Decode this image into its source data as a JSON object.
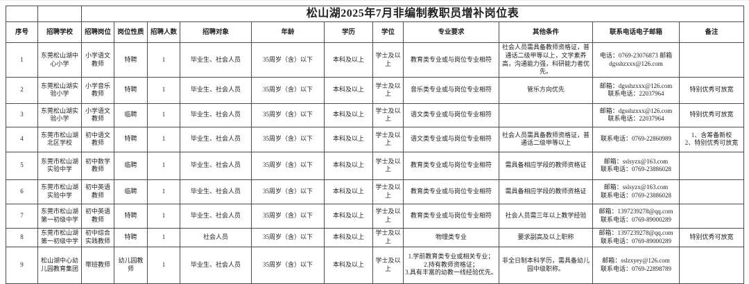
{
  "title": "松山湖2025年7月非编制教职员增补岗位表",
  "table": {
    "columns": [
      "序号",
      "招聘学校",
      "招聘岗位",
      "岗位性质",
      "招聘人数",
      "招聘对象",
      "年龄",
      "学历",
      "学位",
      "专业要求",
      "其他条件",
      "联系电话电子邮箱",
      "备注"
    ],
    "rows": [
      [
        "1",
        "东莞松山湖中心小学",
        "小学语文教师",
        "特聘",
        "1",
        "毕业生、社会人员",
        "35周岁（含）以下",
        "本科及以上",
        "学士及以上",
        "教育类专业或与岗位专业相符",
        "社会人员需具备教师资格证，普通话二级甲等以上，文学素养高，沟通能力强，科研能力者优先。",
        "电话：0769-23076873 邮箱\ndgsshzxxx@126.com",
        ""
      ],
      [
        "2",
        "东莞松山湖实验小学",
        "小学音乐教师",
        "特聘",
        "1",
        "毕业生、社会人员",
        "35周岁（含）以下",
        "本科及以上",
        "学士及以上",
        "音乐类专业或与岗位专业相符",
        "管乐方向优先",
        "邮箱：dgsshzxxx@126.com\n联系电话：22037964",
        "特别优秀可放宽"
      ],
      [
        "3",
        "东莞松山湖实验小学",
        "小学语文教师",
        "临聘",
        "1",
        "毕业生、社会人员",
        "35周岁（含）以下",
        "本科及以上",
        "学士及以上",
        "语文类专业或与岗位专业相符",
        "",
        "邮箱：dgsshzxxx@126.com\n联系电话：22037964",
        "特别优秀可放宽"
      ],
      [
        "4",
        "东莞市松山湖北区学校",
        "初中语文教师",
        "特聘",
        "1",
        "毕业生、社会人员",
        "35周岁（含）以下",
        "本科及以上",
        "学士及以上",
        "语文类专业或与岗位专业相符",
        "社会人员需具备教师资格证，普通话二级甲等以上",
        "联系电话：0769-22860989",
        "1、含筹备新校\n2、特别优秀可放宽"
      ],
      [
        "5",
        "东莞市松山湖实验中学",
        "初中数学教师",
        "临聘",
        "1",
        "毕业生、社会人员",
        "35周岁（含）以下",
        "本科及以上",
        "学士及以上",
        "教育类专业或与岗位专业相符",
        "需具备相应学段的教师资格证",
        "邮箱：sslsyzx@163.com\n联系电话：0769-23886028",
        ""
      ],
      [
        "6",
        "东莞市松山湖实验中学",
        "初中英语教师",
        "临聘",
        "1",
        "毕业生、社会人员",
        "35周岁（含）以下",
        "本科及以上",
        "学士及以上",
        "教育类专业或与岗位专业相符",
        "需具备相应学段的教师资格证",
        "邮箱：sslsyzx@163.com\n联系电话：0769-23886028",
        ""
      ],
      [
        "7",
        "东莞市松山湖第一初级中学",
        "初中英语教师",
        "特聘",
        "1",
        "毕业生、社会人员",
        "35周岁（含）以下",
        "本科及以上",
        "学士及以上",
        "教育类专业或与岗位专业相符",
        "社会人员需三年以上教学经验",
        "邮箱：1397239278@qq.com\n联系电话：0769-89000289",
        ""
      ],
      [
        "8",
        "东莞市松山湖第一初级中学",
        "初中综合实践教师",
        "特聘",
        "1",
        "社会人员",
        "35周岁（含）以下",
        "本科及以上",
        "学士及以上",
        "物理类专业",
        "要求副高及以上职称",
        "邮箱：1397239278@qq.com\n联系电话：0769-89000289",
        "特别优秀可放宽"
      ],
      [
        "9",
        "松山湖中心幼儿园教育集团",
        "带班教师",
        "幼儿园教师",
        "1",
        "毕业生、社会人员",
        "35周岁（含）以下",
        "本科及以上",
        "学士及以上",
        "1.学前教育类专业或相关专业；\n2.持有教师资格证；\n3.具有丰富的幼教一线经验优先。",
        "非全日制本科学历，需具备幼儿园中级职称。",
        "邮箱：sslzxyey@126.com\n联系电话：0769-22898789",
        ""
      ]
    ]
  }
}
